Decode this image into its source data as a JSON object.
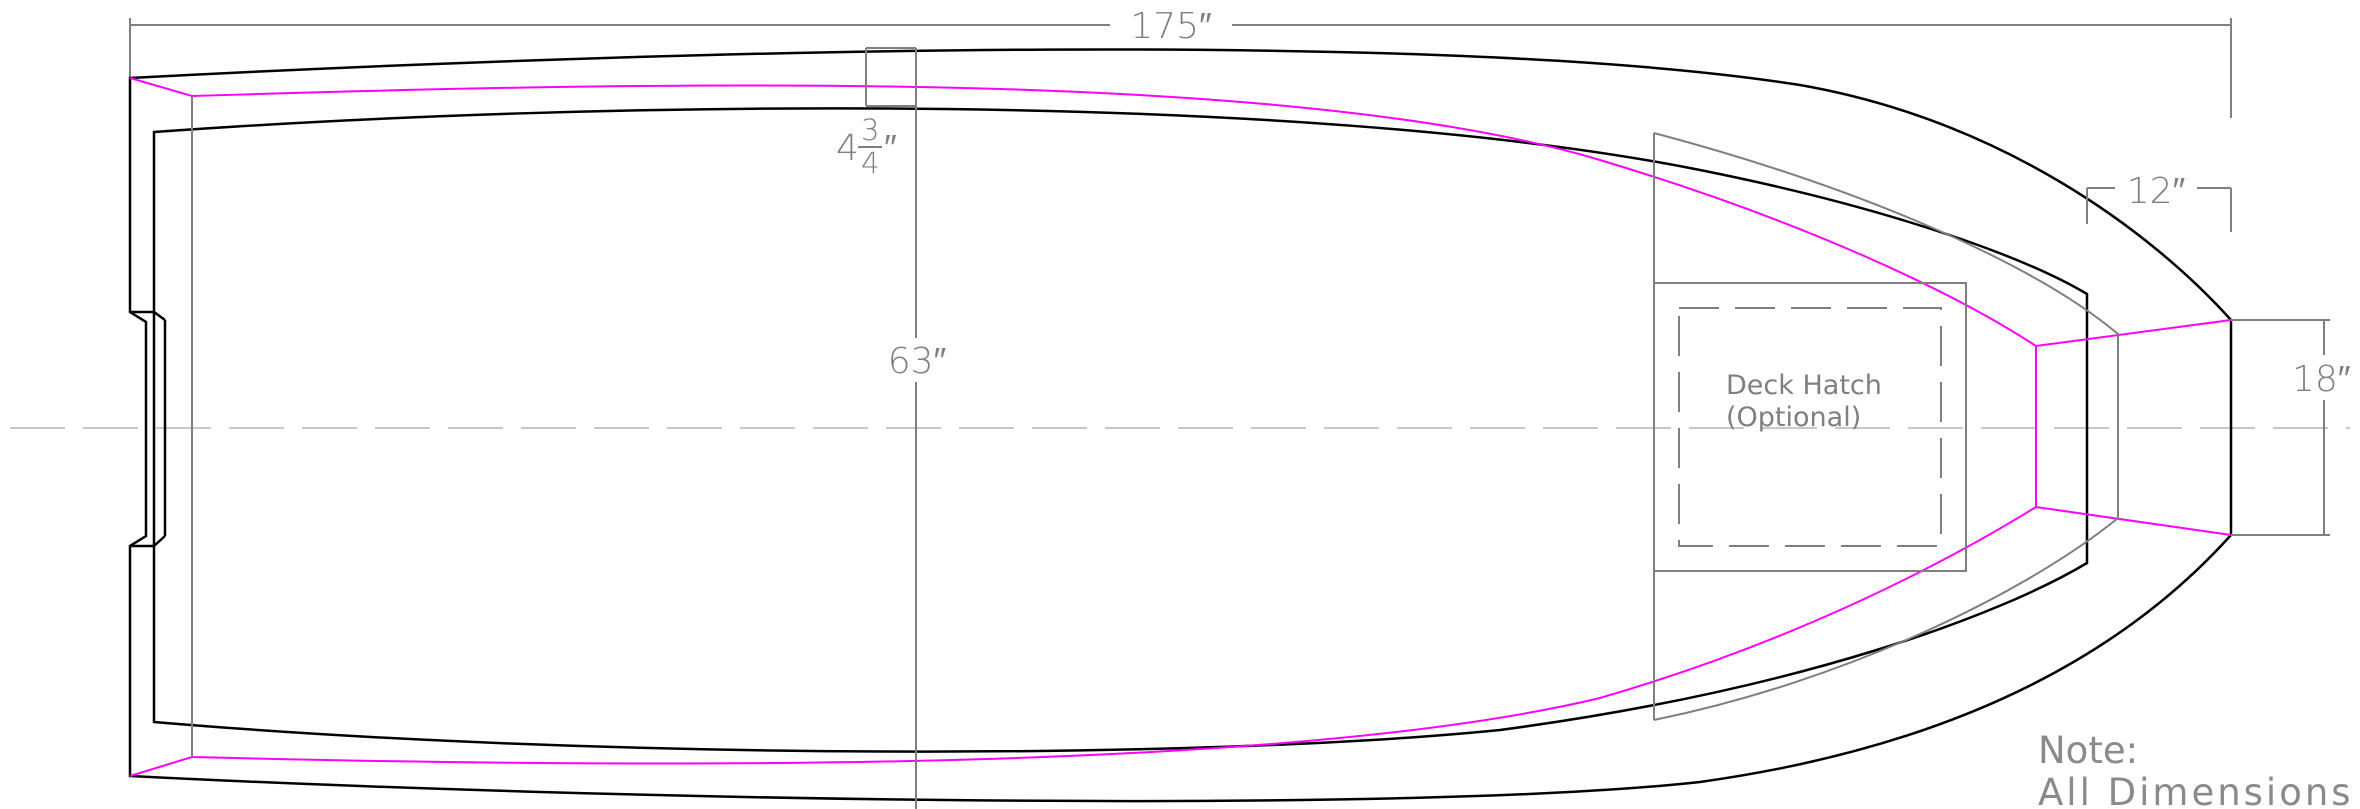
{
  "colors": {
    "background": "#ffffff",
    "outline": "#000000",
    "inner_chine": "#ff00ff",
    "construction": "#7f7f7f",
    "centerline": "#c8c8c8"
  },
  "dimensions": {
    "overall_length": "175″",
    "beam": "63″",
    "side_width_whole": "4",
    "side_width_num": "3",
    "side_width_den": "4",
    "side_width_unit": "″",
    "bow_offset": "12″",
    "bow_width": "18″"
  },
  "hatch": {
    "line1": "Deck Hatch",
    "line2": "(Optional)"
  },
  "note": {
    "title": "Note:",
    "body": "All Dimensions a"
  }
}
